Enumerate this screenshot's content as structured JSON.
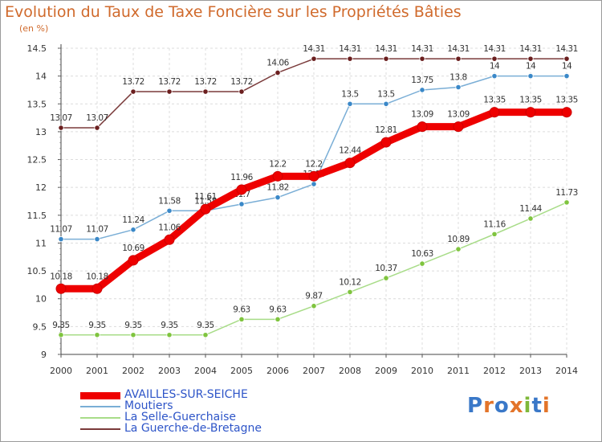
{
  "title": "Evolution du Taux de Taxe Foncière sur les Propriétés Bâties",
  "unit_label": "(en %)",
  "logo": {
    "text": "Proxiti",
    "colors": [
      "#3a78c8",
      "#e3742a",
      "#3a78c8",
      "#e3742a",
      "#7fb83a",
      "#3a78c8",
      "#e3742a"
    ]
  },
  "chart_data": {
    "type": "line",
    "title": "Evolution du Taux de Taxe Foncière sur les Propriétés Bâties",
    "ylabel": "(en %)",
    "xlabel": "",
    "x": [
      "2000",
      "2001",
      "2002",
      "2003",
      "2004",
      "2005",
      "2006",
      "2007",
      "2008",
      "2009",
      "2010",
      "2011",
      "2012",
      "2013",
      "2014"
    ],
    "ylim": [
      9,
      14.5
    ],
    "yticks": [
      "9",
      "9.5",
      "10",
      "10.5",
      "11",
      "11.5",
      "12",
      "12.5",
      "13",
      "13.5",
      "14",
      "14.5"
    ],
    "grid": true,
    "legend_position": "bottom-left",
    "series": [
      {
        "name": "AVAILLES-SUR-SEICHE",
        "color": "#ee0000",
        "point_color": "#ee0000",
        "width": 9,
        "values": [
          10.18,
          10.18,
          10.69,
          11.06,
          11.61,
          11.96,
          12.2,
          12.2,
          12.44,
          12.81,
          13.09,
          13.09,
          13.35,
          13.35,
          13.35
        ],
        "labels": [
          "10.18",
          "10.18",
          "10.69",
          "11.06",
          "11.61",
          "11.96",
          "12.2",
          "12.2",
          "12.44",
          "12.81",
          "13.09",
          "13.09",
          "13.35",
          "13.35",
          "13.35"
        ]
      },
      {
        "name": "Moutiers",
        "color": "#7aaed6",
        "point_color": "#3a88c8",
        "width": 1.5,
        "values": [
          11.07,
          11.07,
          11.24,
          11.58,
          11.58,
          11.7,
          11.82,
          12.06,
          13.5,
          13.5,
          13.75,
          13.8,
          14,
          14,
          14
        ],
        "labels": [
          "11.07",
          "11.07",
          "11.24",
          "11.58",
          "11.58",
          "11.7",
          "11.82",
          "12.06",
          "13.5",
          "13.5",
          "13.75",
          "13.8",
          "14",
          "14",
          "14"
        ]
      },
      {
        "name": "La Selle-Guerchaise",
        "color": "#a8dc88",
        "point_color": "#7fc43e",
        "width": 1.5,
        "values": [
          9.35,
          9.35,
          9.35,
          9.35,
          9.35,
          9.63,
          9.63,
          9.87,
          10.12,
          10.37,
          10.63,
          10.89,
          11.16,
          11.44,
          11.73
        ],
        "labels": [
          "9.35",
          "9.35",
          "9.35",
          "9.35",
          "9.35",
          "9.63",
          "9.63",
          "9.87",
          "10.12",
          "10.37",
          "10.63",
          "10.89",
          "11.16",
          "11.44",
          "11.73"
        ]
      },
      {
        "name": "La Guerche-de-Bretagne",
        "color": "#7a3a3a",
        "point_color": "#6b1f1f",
        "width": 1.5,
        "values": [
          13.07,
          13.07,
          13.72,
          13.72,
          13.72,
          13.72,
          14.06,
          14.31,
          14.31,
          14.31,
          14.31,
          14.31,
          14.31,
          14.31,
          14.31
        ],
        "labels": [
          "13.07",
          "13.07",
          "13.72",
          "13.72",
          "13.72",
          "13.72",
          "14.06",
          "14.31",
          "14.31",
          "14.31",
          "14.31",
          "14.31",
          "14.31",
          "14.31",
          "14.31"
        ]
      }
    ]
  }
}
